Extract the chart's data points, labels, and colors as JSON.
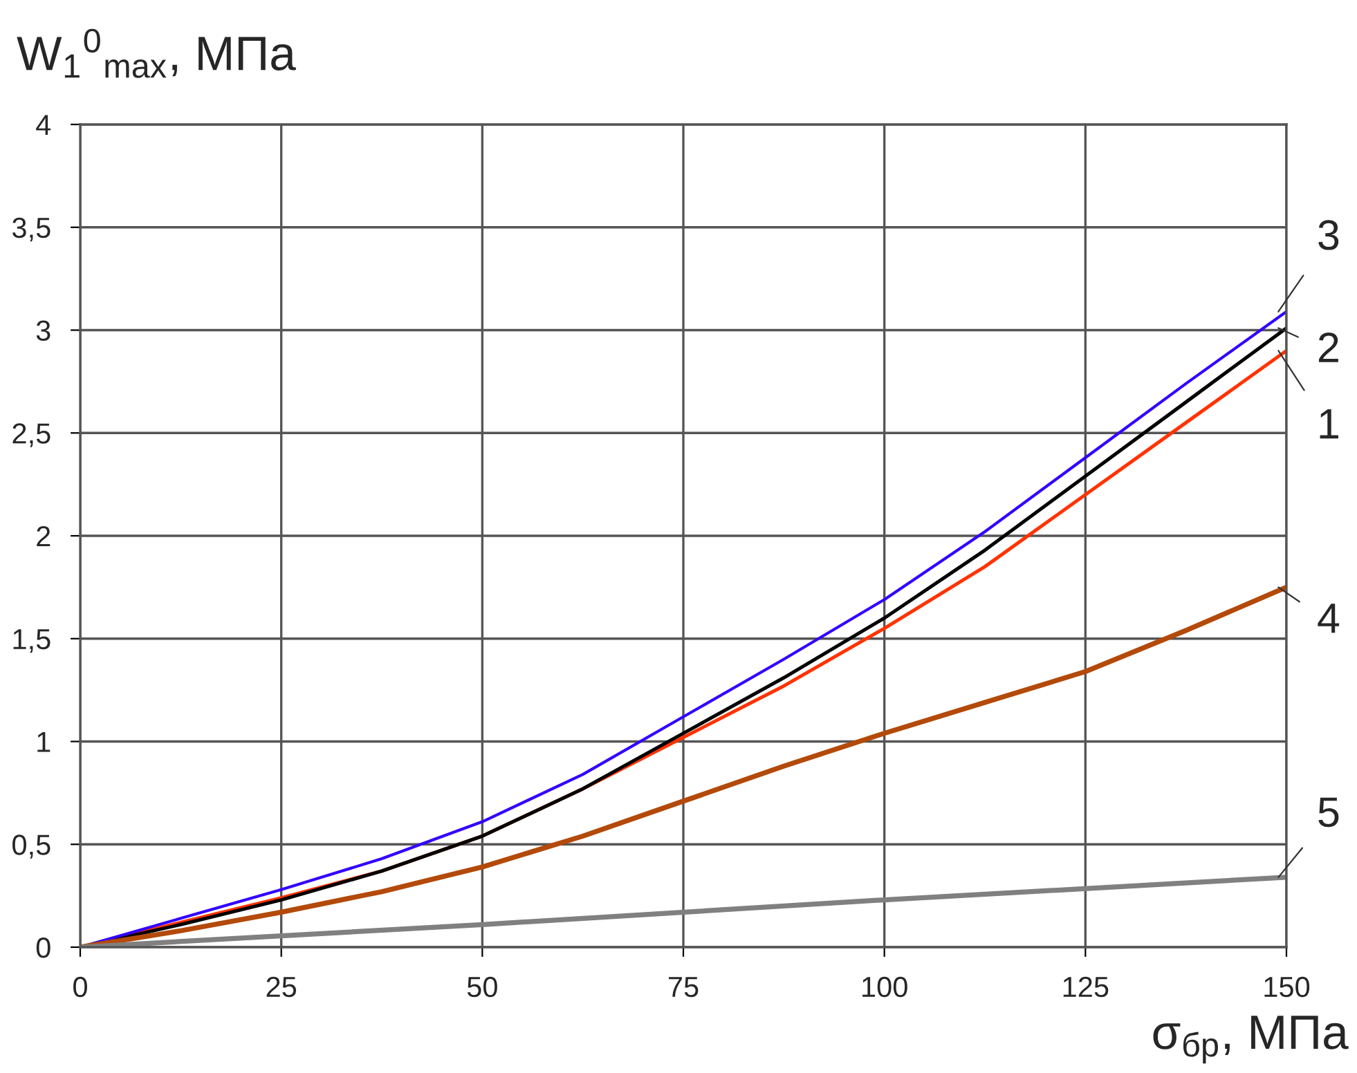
{
  "chart_data": {
    "type": "line",
    "xlabel": "σ$_{бр}$, МПа",
    "ylabel": "W$_{1}$$^{0}$$_{max}$, МПа",
    "xlim": [
      0,
      150
    ],
    "xticks": [
      0,
      25,
      50,
      75,
      100,
      125,
      150
    ],
    "ylim": [
      0,
      4
    ],
    "yticks": [
      0,
      {
        "value": 0.5,
        "label": "0,5"
      },
      1,
      {
        "value": 1.5,
        "label": "1,5"
      },
      2,
      {
        "value": 2.5,
        "label": "2,5"
      },
      3,
      {
        "value": 3.5,
        "label": "3,5"
      },
      4
    ],
    "grid": true,
    "legend": false,
    "marker": "none",
    "line_style": "solid",
    "series": [
      {
        "name": "1",
        "color": "#ff3300",
        "x": [
          0,
          12.5,
          25,
          37.5,
          50,
          62.5,
          75,
          87.5,
          100,
          112.5,
          125,
          137.5,
          150
        ],
        "values": [
          0,
          0.12,
          0.24,
          0.37,
          0.54,
          0.77,
          1.02,
          1.27,
          1.55,
          1.85,
          2.2,
          2.55,
          2.9
        ]
      },
      {
        "name": "2",
        "color": "#000000",
        "x": [
          0,
          12.5,
          25,
          37.5,
          50,
          62.5,
          75,
          87.5,
          100,
          112.5,
          125,
          137.5,
          150
        ],
        "values": [
          0,
          0.11,
          0.23,
          0.37,
          0.54,
          0.77,
          1.04,
          1.31,
          1.6,
          1.93,
          2.29,
          2.65,
          3.01
        ]
      },
      {
        "name": "3",
        "color": "#3300ff",
        "x": [
          0,
          12.5,
          25,
          37.5,
          50,
          62.5,
          75,
          87.5,
          100,
          112.5,
          125,
          137.5,
          150
        ],
        "values": [
          0,
          0.14,
          0.28,
          0.43,
          0.61,
          0.84,
          1.12,
          1.4,
          1.69,
          2.02,
          2.38,
          2.74,
          3.09
        ]
      },
      {
        "name": "4",
        "color": "#b34a0a",
        "x": [
          0,
          12.5,
          25,
          37.5,
          50,
          62.5,
          75,
          87.5,
          100,
          112.5,
          125,
          137.5,
          150
        ],
        "values": [
          0,
          0.08,
          0.17,
          0.27,
          0.39,
          0.54,
          0.71,
          0.88,
          1.04,
          1.19,
          1.34,
          1.54,
          1.75
        ]
      },
      {
        "name": "5",
        "color": "#808080",
        "x": [
          0,
          50,
          100,
          150
        ],
        "values": [
          0,
          0.11,
          0.23,
          0.34
        ]
      }
    ]
  }
}
